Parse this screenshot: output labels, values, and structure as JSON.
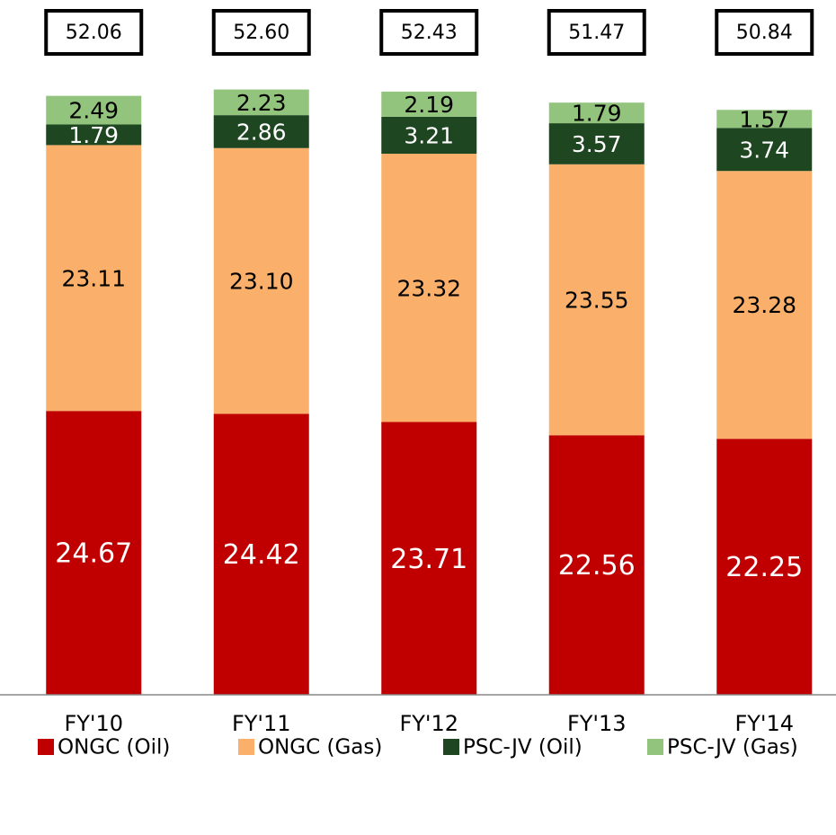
{
  "chart_data": {
    "type": "stacked_bar",
    "categories": [
      "FY'10",
      "FY'11",
      "FY'12",
      "FY'13",
      "FY'14"
    ],
    "series": [
      {
        "name": "ONGC (Oil)",
        "color": "#c00000",
        "label_color": "#ffffff",
        "values": [
          24.67,
          24.42,
          23.71,
          22.56,
          22.25
        ],
        "value_labels": [
          "24.67",
          "24.42",
          "23.71",
          "22.56",
          "22.25"
        ]
      },
      {
        "name": "ONGC (Gas)",
        "color": "#fab06a",
        "label_color": "#000000",
        "values": [
          23.11,
          23.1,
          23.32,
          23.55,
          23.28
        ],
        "value_labels": [
          "23.11",
          "23.10",
          "23.32",
          "23.55",
          "23.28"
        ]
      },
      {
        "name": "PSC-JV (Oil)",
        "color": "#1e4620",
        "label_color": "#ffffff",
        "values": [
          1.79,
          2.86,
          3.21,
          3.57,
          3.74
        ],
        "value_labels": [
          "1.79",
          "2.86",
          "3.21",
          "3.57",
          "3.74"
        ]
      },
      {
        "name": "PSC-JV (Gas)",
        "color": "#93c47d",
        "label_color": "#000000",
        "values": [
          2.49,
          2.23,
          2.19,
          1.79,
          1.57
        ],
        "value_labels": [
          "2.49",
          "2.23",
          "2.19",
          "1.79",
          "1.57"
        ]
      }
    ],
    "totals": {
      "values": [
        52.06,
        52.6,
        52.43,
        51.47,
        50.84
      ],
      "value_labels": [
        "52.06",
        "52.60",
        "52.43",
        "51.47",
        "50.84"
      ]
    },
    "ylim": [
      0,
      60
    ],
    "legend": "bottom"
  }
}
